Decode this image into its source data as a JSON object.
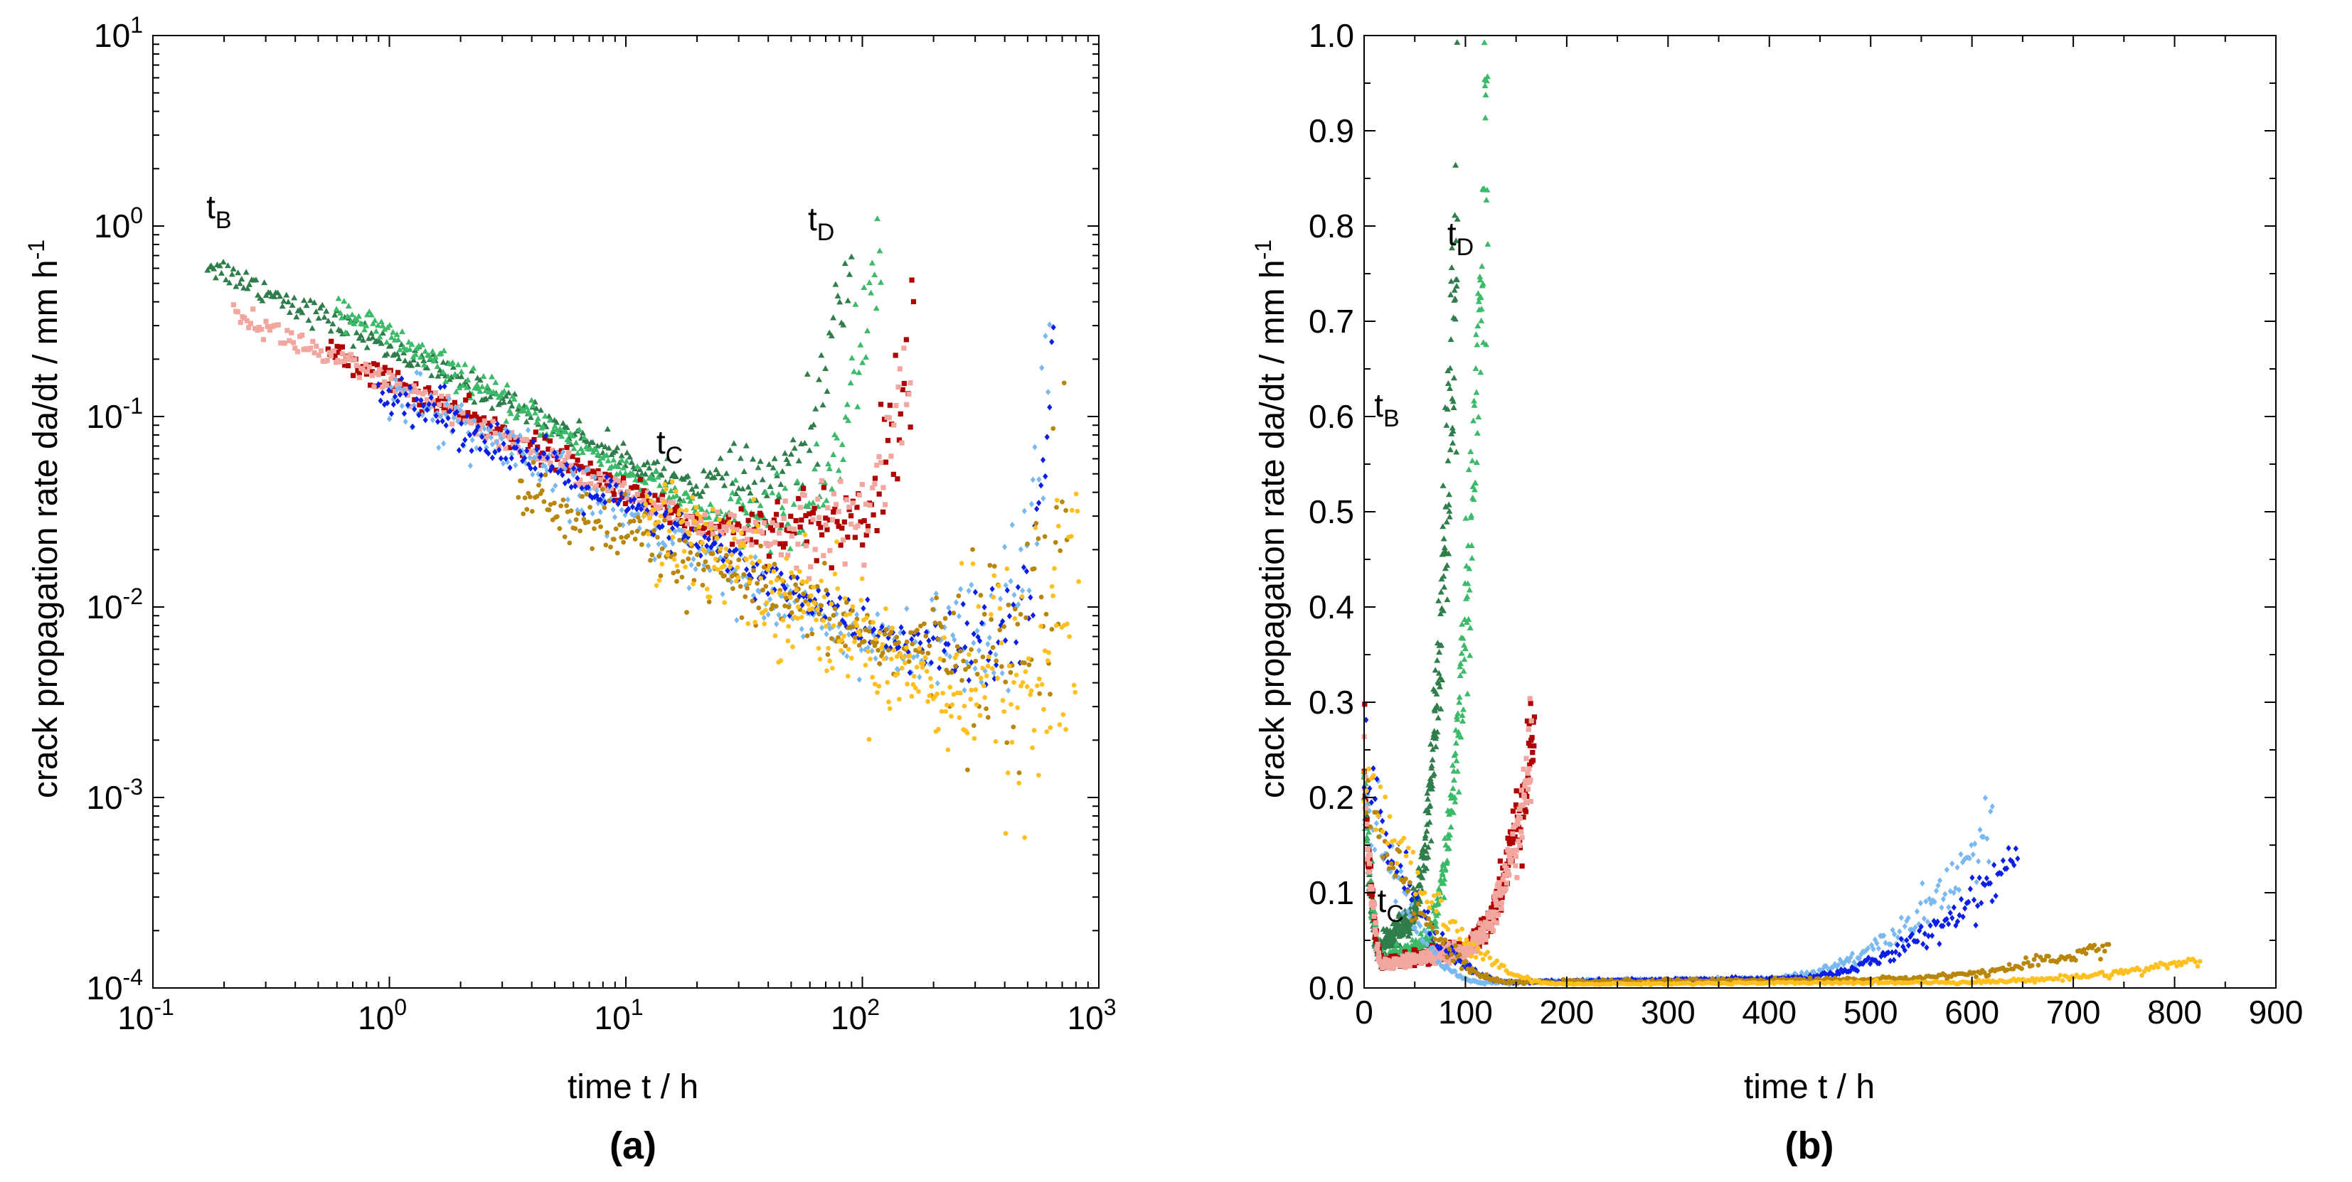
{
  "chart_data": [
    {
      "panel": "a",
      "type": "scatter",
      "panel_label": "(a)",
      "xscale": "log",
      "yscale": "log",
      "xlim": [
        0.1,
        1000
      ],
      "ylim": [
        0.0001,
        10
      ],
      "xtick_labels": [
        {
          "base": "10",
          "exp": "-1",
          "value": 0.1
        },
        {
          "base": "10",
          "exp": "0",
          "value": 1
        },
        {
          "base": "10",
          "exp": "1",
          "value": 10
        },
        {
          "base": "10",
          "exp": "2",
          "value": 100
        },
        {
          "base": "10",
          "exp": "3",
          "value": 1000
        }
      ],
      "ytick_labels": [
        {
          "base": "10",
          "exp": "-4",
          "value": 0.0001
        },
        {
          "base": "10",
          "exp": "-3",
          "value": 0.001
        },
        {
          "base": "10",
          "exp": "-2",
          "value": 0.01
        },
        {
          "base": "10",
          "exp": "-1",
          "value": 0.1
        },
        {
          "base": "10",
          "exp": "0",
          "value": 1
        },
        {
          "base": "10",
          "exp": "1",
          "value": 10
        }
      ],
      "xlabel": "time  t  /  h",
      "ylabel_main": "crack propagation rate  da/dt  /  mm h",
      "ylabel_sup": "-1",
      "annotations": [
        {
          "base": "t",
          "sub": "B",
          "x": 0.2,
          "y": 1.1
        },
        {
          "base": "t",
          "sub": "C",
          "x": 16,
          "y": 0.064
        },
        {
          "base": "t",
          "sub": "D",
          "x": 70,
          "y": 0.95
        }
      ],
      "series": [
        {
          "name": "dark green",
          "color": "#2e7d4a",
          "marker": "triangle",
          "start": [
            0.17,
            0.64
          ],
          "end": [
            90,
            0.8
          ],
          "t_min": 17,
          "v_min": 0.045,
          "ramp_start": 45,
          "scatter": 0.12
        },
        {
          "name": "light green",
          "color": "#3cba6a",
          "marker": "triangle",
          "start": [
            0.6,
            0.38
          ],
          "end": [
            120,
            0.9
          ],
          "t_min": 22,
          "v_min": 0.03,
          "ramp_start": 55,
          "scatter": 0.13
        },
        {
          "name": "dark red",
          "color": "#b00000",
          "marker": "square",
          "start": [
            0.55,
            0.22
          ],
          "end": [
            165,
            0.28
          ],
          "t_min": 22,
          "v_min": 0.026,
          "ramp_start": 90,
          "scatter": 0.12
        },
        {
          "name": "pink",
          "color": "#f2a6a0",
          "marker": "square",
          "start": [
            0.22,
            0.35
          ],
          "end": [
            160,
            0.22
          ],
          "t_min": 22,
          "v_min": 0.025,
          "ramp_start": 90,
          "scatter": 0.12
        },
        {
          "name": "light blue",
          "color": "#7ab8f0",
          "marker": "diamond",
          "start": [
            1.0,
            0.14
          ],
          "end": [
            620,
            0.17
          ],
          "t_min": 120,
          "v_min": 0.006,
          "ramp_start": 380,
          "scatter": 0.25
        },
        {
          "name": "blue",
          "color": "#0a1ee8",
          "marker": "diamond",
          "start": [
            0.9,
            0.15
          ],
          "end": [
            645,
            0.145
          ],
          "t_min": 150,
          "v_min": 0.0062,
          "ramp_start": 400,
          "scatter": 0.2
        },
        {
          "name": "olive gold",
          "color": "#b8860b",
          "marker": "circle",
          "start": [
            3.5,
            0.04
          ],
          "end": [
            735,
            0.045
          ],
          "t_min": 150,
          "v_min": 0.006,
          "ramp_start": 480,
          "scatter": 0.3
        },
        {
          "name": "yellow",
          "color": "#ffbf1f",
          "marker": "circle",
          "start": [
            12,
            0.035
          ],
          "end": [
            825,
            0.03
          ],
          "t_min": 200,
          "v_min": 0.004,
          "ramp_start": 560,
          "scatter": 0.5
        }
      ]
    },
    {
      "panel": "b",
      "type": "scatter",
      "panel_label": "(b)",
      "xscale": "linear",
      "yscale": "linear",
      "xlim": [
        0,
        900
      ],
      "ylim": [
        0,
        1.0
      ],
      "xticks": [
        0,
        100,
        200,
        300,
        400,
        500,
        600,
        700,
        800,
        900
      ],
      "xtick_labels": [
        "0",
        "100",
        "200",
        "300",
        "400",
        "500",
        "600",
        "700",
        "800",
        "900"
      ],
      "yticks": [
        0.0,
        0.1,
        0.2,
        0.3,
        0.4,
        0.5,
        0.6,
        0.7,
        0.8,
        0.9,
        1.0
      ],
      "ytick_labels": [
        "0.0",
        "0.1",
        "0.2",
        "0.3",
        "0.4",
        "0.5",
        "0.6",
        "0.7",
        "0.8",
        "0.9",
        "1.0"
      ],
      "xlabel": "time  t  /  h",
      "ylabel_main": "crack propagation rate  da/dt  /  mm h",
      "ylabel_sup": "-1",
      "annotations": [
        {
          "base": "t",
          "sub": "B",
          "x": 3,
          "y": 0.6
        },
        {
          "base": "t",
          "sub": "C",
          "x": 6,
          "y": 0.08
        },
        {
          "base": "t",
          "sub": "D",
          "x": 75,
          "y": 0.78
        }
      ],
      "series": [
        {
          "name": "dark green",
          "color": "#2e7d4a",
          "marker": "triangle",
          "end_t": 92,
          "end_v": 0.8,
          "min_t": 17,
          "min_v": 0.045,
          "ramp_start": 40
        },
        {
          "name": "light green",
          "color": "#3cba6a",
          "marker": "triangle",
          "end_t": 122,
          "end_v": 0.9,
          "min_t": 22,
          "min_v": 0.03,
          "ramp_start": 55
        },
        {
          "name": "dark red",
          "color": "#b00000",
          "marker": "square",
          "end_t": 168,
          "end_v": 0.28,
          "min_t": 22,
          "min_v": 0.026,
          "ramp_start": 90
        },
        {
          "name": "pink",
          "color": "#f2a6a0",
          "marker": "square",
          "end_t": 165,
          "end_v": 0.24,
          "min_t": 22,
          "min_v": 0.025,
          "ramp_start": 90
        },
        {
          "name": "light blue",
          "color": "#7ab8f0",
          "marker": "diamond",
          "end_t": 620,
          "end_v": 0.17,
          "min_t": 120,
          "min_v": 0.006,
          "ramp_start": 380
        },
        {
          "name": "blue",
          "color": "#0a1ee8",
          "marker": "diamond",
          "end_t": 645,
          "end_v": 0.145,
          "min_t": 150,
          "min_v": 0.0062,
          "ramp_start": 400
        },
        {
          "name": "olive gold",
          "color": "#b8860b",
          "marker": "circle",
          "end_t": 735,
          "end_v": 0.045,
          "min_t": 150,
          "min_v": 0.006,
          "ramp_start": 480
        },
        {
          "name": "yellow",
          "color": "#ffbf1f",
          "marker": "circle",
          "end_t": 825,
          "end_v": 0.03,
          "min_t": 200,
          "min_v": 0.004,
          "ramp_start": 560
        }
      ]
    }
  ]
}
